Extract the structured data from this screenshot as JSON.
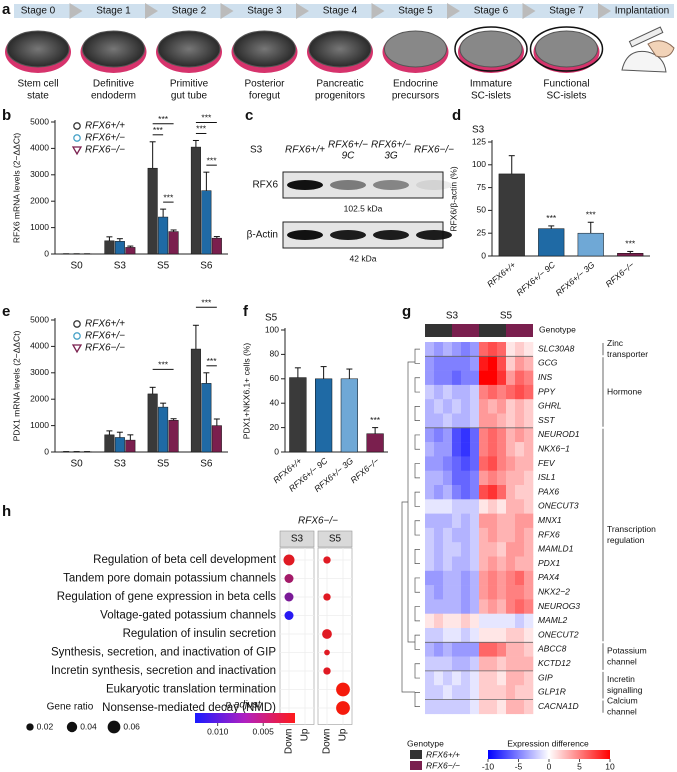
{
  "figure": {
    "a": {
      "panel_label": "a",
      "stages": [
        "Stage 0",
        "Stage 1",
        "Stage 2",
        "Stage 3",
        "Stage 4",
        "Stage 5",
        "Stage 6",
        "Stage 7",
        "Implantation"
      ],
      "captions": [
        [
          "Stem cell",
          "state"
        ],
        [
          "Definitive",
          "endoderm"
        ],
        [
          "Primitive",
          "gut tube"
        ],
        [
          "Posterior",
          "foregut"
        ],
        [
          "Pancreatic",
          "progenitors"
        ],
        [
          "Endocrine",
          "precursors"
        ],
        [
          "Immature",
          "SC-islets"
        ],
        [
          "Functional",
          "SC-islets"
        ]
      ]
    },
    "b": {
      "panel_label": "b",
      "type": "bar",
      "ylabel": "RFX6 mRNA levels (2−ΔΔCt)",
      "categories": [
        "S0",
        "S3",
        "S5",
        "S6"
      ],
      "series": [
        {
          "name": "RFX6+/+",
          "color": "#3a3a3a",
          "marker": "circle",
          "values": [
            5,
            500,
            3250,
            4050
          ],
          "errors": [
            3,
            150,
            1000,
            250
          ]
        },
        {
          "name": "RFX6+/−",
          "color": "#1f6aa5",
          "marker": "circle",
          "values": [
            5,
            480,
            1400,
            2400
          ],
          "errors": [
            3,
            100,
            300,
            700
          ]
        },
        {
          "name": "RFX6−/−",
          "color": "#7a1f4e",
          "marker": "triangle",
          "values": [
            5,
            250,
            850,
            600
          ],
          "errors": [
            3,
            50,
            60,
            60
          ]
        }
      ],
      "ylim": [
        0,
        5000
      ],
      "yticks": [
        0,
        1000,
        2000,
        3000,
        4000,
        5000
      ],
      "significance": [
        {
          "label": "***",
          "category": 2,
          "series": [
            0,
            2
          ]
        },
        {
          "label": "***",
          "category": 2,
          "series": [
            0,
            1
          ]
        },
        {
          "label": "***",
          "category": 2,
          "series": [
            1,
            2
          ]
        },
        {
          "label": "***",
          "category": 3,
          "series": [
            0,
            2
          ]
        },
        {
          "label": "***",
          "category": 3,
          "series": [
            0,
            1
          ]
        },
        {
          "label": "***",
          "category": 3,
          "series": [
            1,
            2
          ]
        }
      ]
    },
    "c": {
      "panel_label": "c",
      "stage": "S3",
      "lanes": [
        [
          "RFX6+/+"
        ],
        [
          "RFX6+/−",
          "9C"
        ],
        [
          "RFX6+/−",
          "3G"
        ],
        [
          "RFX6−/−"
        ]
      ],
      "rows": [
        {
          "name": "RFX6",
          "size": "102.5 kDa",
          "band_intensity": [
            1,
            0.5,
            0.45,
            0.08
          ]
        },
        {
          "name": "β-Actin",
          "size": "42 kDa",
          "band_intensity": [
            1,
            0.95,
            0.95,
            0.95
          ]
        }
      ]
    },
    "d": {
      "panel_label": "d",
      "type": "bar",
      "title": "S3",
      "ylabel": "RFX6/β-actin (%)",
      "categories": [
        "RFX6+/+",
        "RFX6+/− 9C",
        "RFX6+/− 3G",
        "RFX6−/−"
      ],
      "values": [
        90,
        30,
        25,
        3
      ],
      "errors": [
        20,
        3,
        12,
        2
      ],
      "colors": [
        "#3a3a3a",
        "#1f6aa5",
        "#6fa8d6",
        "#7a1f4e"
      ],
      "ylim": [
        0,
        125
      ],
      "yticks": [
        0,
        25,
        50,
        75,
        100,
        125
      ],
      "significance": [
        {
          "label": "***",
          "category": 1
        },
        {
          "label": "***",
          "category": 2
        },
        {
          "label": "***",
          "category": 3
        }
      ]
    },
    "e": {
      "panel_label": "e",
      "type": "bar",
      "ylabel": "PDX1 mRNA levels (2−ΔΔCt)",
      "categories": [
        "S0",
        "S3",
        "S5",
        "S6"
      ],
      "series": [
        {
          "name": "RFX6+/+",
          "color": "#3a3a3a",
          "marker": "circle",
          "values": [
            10,
            650,
            2200,
            3900
          ],
          "errors": [
            5,
            150,
            250,
            900
          ]
        },
        {
          "name": "RFX6+/−",
          "color": "#1f6aa5",
          "marker": "circle",
          "values": [
            10,
            550,
            1700,
            2600
          ],
          "errors": [
            5,
            200,
            150,
            400
          ]
        },
        {
          "name": "RFX6−/−",
          "color": "#7a1f4e",
          "marker": "triangle",
          "values": [
            10,
            450,
            1200,
            1000
          ],
          "errors": [
            5,
            200,
            60,
            250
          ]
        }
      ],
      "ylim": [
        0,
        5000
      ],
      "yticks": [
        0,
        1000,
        2000,
        3000,
        4000,
        5000
      ],
      "significance": [
        {
          "label": "***",
          "category": 2,
          "series": [
            0,
            2
          ]
        },
        {
          "label": "***",
          "category": 3,
          "series": [
            0,
            2
          ]
        },
        {
          "label": "***",
          "category": 3,
          "series": [
            1,
            2
          ]
        }
      ]
    },
    "f": {
      "panel_label": "f",
      "type": "bar",
      "title": "S5",
      "ylabel": "PDX1+NKX6.1+ cells (%)",
      "categories": [
        "RFX6+/+",
        "RFX6+/− 9C",
        "RFX6+/− 3G",
        "RFX6−/−"
      ],
      "values": [
        61,
        60,
        60,
        15
      ],
      "errors": [
        8,
        10,
        8,
        5
      ],
      "colors": [
        "#3a3a3a",
        "#1f6aa5",
        "#6fa8d6",
        "#7a1f4e"
      ],
      "ylim": [
        0,
        100
      ],
      "yticks": [
        0,
        20,
        40,
        60,
        80,
        100
      ],
      "significance": [
        {
          "label": "***",
          "category": 3
        }
      ]
    },
    "g": {
      "panel_label": "g",
      "type": "heatmap",
      "groups": [
        "S3",
        "S5"
      ],
      "column_group": [
        0,
        0,
        0,
        0,
        0,
        0,
        1,
        1,
        1,
        1,
        1,
        1
      ],
      "column_genotype": [
        0,
        0,
        0,
        1,
        1,
        1,
        0,
        0,
        0,
        1,
        1,
        1
      ],
      "genotype_title": "Genotype",
      "genotypes": [
        {
          "name": "RFX6+/+",
          "color": "#333333"
        },
        {
          "name": "RFX6−/−",
          "color": "#7a1f4e"
        }
      ],
      "genes": [
        "SLC30A8",
        "GCG",
        "INS",
        "PPY",
        "GHRL",
        "SST",
        "NEUROD1",
        "NKX6−1",
        "FEV",
        "ISL1",
        "PAX6",
        "ONECUT3",
        "MNX1",
        "RFX6",
        "MAMLD1",
        "PDX1",
        "PAX4",
        "NKX2−2",
        "NEUROG3",
        "MAML2",
        "ONECUT2",
        "ABCC8",
        "KCTD12",
        "GIP",
        "GLP1R",
        "CACNA1D"
      ],
      "gene_groups": [
        {
          "lines": [
            "Zinc",
            "transporter"
          ],
          "rows": [
            0,
            0
          ]
        },
        {
          "lines": [
            "Hormone"
          ],
          "rows": [
            1,
            5
          ]
        },
        {
          "lines": [
            "Transcription",
            "regulation"
          ],
          "rows": [
            6,
            20
          ]
        },
        {
          "lines": [
            "Potassium",
            "channel"
          ],
          "rows": [
            21,
            22
          ]
        },
        {
          "lines": [
            "Incretin",
            "signalling"
          ],
          "rows": [
            23,
            24
          ]
        },
        {
          "lines": [
            "Calcium",
            "channel"
          ],
          "rows": [
            25,
            25
          ]
        }
      ],
      "matrix": [
        [
          -3,
          -4,
          -3,
          -4,
          -5,
          -4,
          6,
          7,
          6,
          1,
          2,
          1
        ],
        [
          -4,
          -5,
          -5,
          -5,
          -5,
          -4,
          9,
          10,
          7,
          2,
          4,
          3
        ],
        [
          -4,
          -5,
          -5,
          -6,
          -5,
          -5,
          10,
          10,
          8,
          4,
          6,
          5
        ],
        [
          -2,
          -3,
          -2,
          -3,
          -3,
          -2,
          5,
          6,
          5,
          6,
          7,
          6
        ],
        [
          -3,
          -2,
          -3,
          -2,
          -3,
          -2,
          4,
          3,
          4,
          2,
          3,
          2
        ],
        [
          -3,
          -3,
          -2,
          -3,
          -3,
          -2,
          4,
          4,
          3,
          2,
          3,
          2
        ],
        [
          -4,
          -5,
          -4,
          -7,
          -8,
          -6,
          5,
          6,
          5,
          3,
          4,
          3
        ],
        [
          -3,
          -4,
          -4,
          -7,
          -8,
          -6,
          5,
          6,
          5,
          3,
          2,
          3
        ],
        [
          -4,
          -4,
          -5,
          -6,
          -7,
          -6,
          6,
          7,
          5,
          4,
          3,
          3
        ],
        [
          -3,
          -3,
          -4,
          -6,
          -6,
          -5,
          4,
          5,
          4,
          3,
          3,
          2
        ],
        [
          -3,
          -4,
          -3,
          -5,
          -6,
          -5,
          7,
          8,
          6,
          3,
          2,
          2
        ],
        [
          -1,
          -1,
          -1,
          -2,
          -2,
          -2,
          1,
          2,
          1,
          3,
          3,
          2
        ],
        [
          -3,
          -3,
          -3,
          -2,
          -3,
          -2,
          4,
          4,
          3,
          3,
          4,
          4
        ],
        [
          -2,
          -3,
          -2,
          -3,
          -3,
          -2,
          3,
          4,
          3,
          3,
          4,
          3
        ],
        [
          -2,
          -3,
          -2,
          -2,
          -3,
          -2,
          3,
          3,
          2,
          4,
          4,
          3
        ],
        [
          -2,
          -3,
          -2,
          -3,
          -3,
          -2,
          3,
          4,
          3,
          4,
          3,
          3
        ],
        [
          -4,
          -4,
          -3,
          -3,
          -4,
          -3,
          4,
          5,
          4,
          5,
          6,
          4
        ],
        [
          -3,
          -4,
          -3,
          -3,
          -4,
          -3,
          4,
          5,
          4,
          5,
          5,
          4
        ],
        [
          -3,
          -3,
          -3,
          -3,
          -4,
          -3,
          3,
          4,
          3,
          5,
          6,
          5
        ],
        [
          1,
          2,
          1,
          1,
          2,
          1,
          -1,
          -1,
          -1,
          -1,
          -2,
          -1
        ],
        [
          -2,
          -2,
          -1,
          -1,
          -2,
          -1,
          1,
          1,
          1,
          2,
          2,
          1
        ],
        [
          -3,
          -4,
          -3,
          -4,
          -4,
          -4,
          6,
          6,
          5,
          3,
          3,
          2
        ],
        [
          -2,
          -2,
          -2,
          -3,
          -3,
          -2,
          3,
          3,
          2,
          3,
          3,
          3
        ],
        [
          -2,
          -1,
          -2,
          -1,
          -2,
          -1,
          2,
          2,
          1,
          3,
          3,
          2
        ],
        [
          -2,
          -2,
          -1,
          -2,
          -2,
          -1,
          2,
          2,
          2,
          3,
          2,
          2
        ],
        [
          -2,
          -2,
          -2,
          -2,
          -2,
          -1,
          2,
          2,
          1,
          3,
          3,
          2
        ]
      ],
      "color_title": "Expression difference",
      "clim": [
        -10,
        10
      ],
      "cticks": [
        -10,
        -5,
        0,
        5,
        10
      ]
    },
    "h": {
      "panel_label": "h",
      "type": "dotplot",
      "title": "RFX6−/−",
      "facets": [
        "S3",
        "S5"
      ],
      "directions": [
        "Down",
        "Up"
      ],
      "terms": [
        "Regulation of beta cell development",
        "Tandem pore domain potassium channels",
        "Regulation of gene expression in beta cells",
        "Voltage-gated potassium channels",
        "Regulation of insulin secretion",
        "Synthesis, secretion, and inactivation of GIP",
        "Incretin synthesis, secretion and inactivation",
        "Eukaryotic translation termination",
        "Nonsense-mediated decay (NMD)"
      ],
      "points": [
        {
          "facet": 0,
          "direction": 0,
          "term": 0,
          "ratio": 0.045,
          "padj": 0.003
        },
        {
          "facet": 0,
          "direction": 0,
          "term": 1,
          "ratio": 0.03,
          "padj": 0.006
        },
        {
          "facet": 0,
          "direction": 0,
          "term": 2,
          "ratio": 0.03,
          "padj": 0.008
        },
        {
          "facet": 0,
          "direction": 0,
          "term": 3,
          "ratio": 0.03,
          "padj": 0.012
        },
        {
          "facet": 1,
          "direction": 0,
          "term": 0,
          "ratio": 0.02,
          "padj": 0.003
        },
        {
          "facet": 1,
          "direction": 0,
          "term": 2,
          "ratio": 0.02,
          "padj": 0.003
        },
        {
          "facet": 1,
          "direction": 0,
          "term": 4,
          "ratio": 0.035,
          "padj": 0.003
        },
        {
          "facet": 1,
          "direction": 0,
          "term": 5,
          "ratio": 0.012,
          "padj": 0.003
        },
        {
          "facet": 1,
          "direction": 0,
          "term": 6,
          "ratio": 0.02,
          "padj": 0.003
        },
        {
          "facet": 1,
          "direction": 1,
          "term": 7,
          "ratio": 0.07,
          "padj": 0.002
        },
        {
          "facet": 1,
          "direction": 1,
          "term": 8,
          "ratio": 0.07,
          "padj": 0.002
        }
      ],
      "size_title": "Gene ratio",
      "size_legend": [
        0.02,
        0.04,
        0.06
      ],
      "color_title": "p.adjust",
      "clim": [
        0.0125,
        0.0015
      ],
      "cticks": [
        {
          "value": 0.01,
          "label": "0.010"
        },
        {
          "value": 0.005,
          "label": "0.005"
        }
      ]
    }
  }
}
